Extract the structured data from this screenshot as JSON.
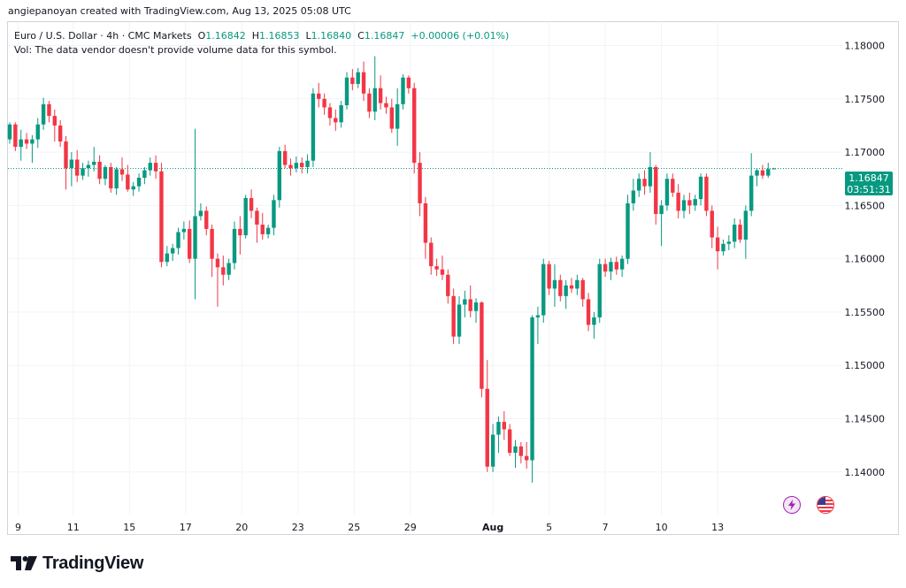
{
  "header": {
    "credit": "angiepanoyan created with TradingView.com, Aug 13, 2025 05:08 UTC"
  },
  "legend": {
    "symbol": "Euro / U.S. Dollar · 4h · CMC Markets",
    "o_label": "O",
    "o_value": "1.16842",
    "h_label": "H",
    "h_value": "1.16853",
    "l_label": "L",
    "l_value": "1.16840",
    "c_label": "C",
    "c_value": "1.16847",
    "change": "+0.00006 (+0.01%)",
    "vol_note": "Vol: The data vendor doesn't provide volume data for this symbol."
  },
  "price_badge": {
    "price": "1.16847",
    "countdown": "03:51:31"
  },
  "brand": {
    "name": "TradingView"
  },
  "icons": {
    "flash": "flash-icon",
    "flag": "us-flag-icon",
    "logo": "tradingview-logo-icon"
  },
  "colors": {
    "up": "#089981",
    "down": "#f23645",
    "grid": "#f0f3fa",
    "text": "#131722",
    "purple": "#9c27b0"
  },
  "chart_data": {
    "type": "candlestick",
    "ylim": [
      1.136,
      1.1822
    ],
    "y_ticks": [
      "1.18000",
      "1.17500",
      "1.17000",
      "1.16500",
      "1.16000",
      "1.15500",
      "1.15000",
      "1.14500",
      "1.14000"
    ],
    "x_ticks": [
      {
        "label": "9",
        "bar": 1.5
      },
      {
        "label": "11",
        "bar": 11.3
      },
      {
        "label": "15",
        "bar": 21.3
      },
      {
        "label": "17",
        "bar": 31.3
      },
      {
        "label": "20",
        "bar": 41.3
      },
      {
        "label": "23",
        "bar": 51.3
      },
      {
        "label": "25",
        "bar": 61.3
      },
      {
        "label": "29",
        "bar": 71.3
      },
      {
        "label": "Aug",
        "bar": 86.0
      },
      {
        "label": "5",
        "bar": 96.0
      },
      {
        "label": "7",
        "bar": 106.0
      },
      {
        "label": "10",
        "bar": 116.0
      },
      {
        "label": "13",
        "bar": 126.0
      }
    ],
    "last_price": 1.16847,
    "candles": [
      [
        1.1712,
        1.1728,
        1.1708,
        1.1726
      ],
      [
        1.1726,
        1.1728,
        1.1701,
        1.1705
      ],
      [
        1.1705,
        1.1721,
        1.1692,
        1.1712
      ],
      [
        1.1712,
        1.1718,
        1.1703,
        1.1708
      ],
      [
        1.1708,
        1.1716,
        1.169,
        1.1712
      ],
      [
        1.1712,
        1.1732,
        1.1704,
        1.1726
      ],
      [
        1.1726,
        1.1751,
        1.1721,
        1.1745
      ],
      [
        1.1745,
        1.1748,
        1.1728,
        1.1734
      ],
      [
        1.1734,
        1.174,
        1.171,
        1.1725
      ],
      [
        1.1725,
        1.173,
        1.1705,
        1.171
      ],
      [
        1.171,
        1.1715,
        1.1665,
        1.1685
      ],
      [
        1.1685,
        1.17,
        1.1668,
        1.1693
      ],
      [
        1.1693,
        1.1702,
        1.1672,
        1.1678
      ],
      [
        1.1678,
        1.169,
        1.1674,
        1.1685
      ],
      [
        1.1685,
        1.1692,
        1.1677,
        1.1688
      ],
      [
        1.1688,
        1.1705,
        1.1682,
        1.1691
      ],
      [
        1.1691,
        1.1697,
        1.167,
        1.1675
      ],
      [
        1.1675,
        1.1688,
        1.1669,
        1.1686
      ],
      [
        1.1686,
        1.169,
        1.1662,
        1.1666
      ],
      [
        1.1666,
        1.1686,
        1.166,
        1.1684
      ],
      [
        1.1684,
        1.1695,
        1.1673,
        1.1679
      ],
      [
        1.1679,
        1.1688,
        1.1663,
        1.1665
      ],
      [
        1.1665,
        1.1672,
        1.1659,
        1.1668
      ],
      [
        1.1668,
        1.168,
        1.1663,
        1.1676
      ],
      [
        1.1676,
        1.1686,
        1.167,
        1.1683
      ],
      [
        1.1683,
        1.1695,
        1.1678,
        1.169
      ],
      [
        1.169,
        1.1697,
        1.1675,
        1.1682
      ],
      [
        1.1682,
        1.169,
        1.1592,
        1.1597
      ],
      [
        1.1597,
        1.1612,
        1.1593,
        1.1605
      ],
      [
        1.1605,
        1.1614,
        1.1598,
        1.161
      ],
      [
        1.161,
        1.1629,
        1.1604,
        1.1625
      ],
      [
        1.1625,
        1.1635,
        1.1618,
        1.1628
      ],
      [
        1.1628,
        1.1636,
        1.1596,
        1.16
      ],
      [
        1.16,
        1.1722,
        1.1562,
        1.164
      ],
      [
        1.164,
        1.1652,
        1.1636,
        1.1645
      ],
      [
        1.1645,
        1.1649,
        1.1622,
        1.1628
      ],
      [
        1.1628,
        1.1632,
        1.1583,
        1.16
      ],
      [
        1.16,
        1.1605,
        1.1555,
        1.1592
      ],
      [
        1.1592,
        1.1603,
        1.1575,
        1.1585
      ],
      [
        1.1585,
        1.16,
        1.158,
        1.1596
      ],
      [
        1.1596,
        1.1635,
        1.159,
        1.1628
      ],
      [
        1.1628,
        1.164,
        1.1604,
        1.1622
      ],
      [
        1.1622,
        1.166,
        1.1619,
        1.1657
      ],
      [
        1.1657,
        1.1665,
        1.1638,
        1.1645
      ],
      [
        1.1645,
        1.1648,
        1.1615,
        1.1632
      ],
      [
        1.1632,
        1.1643,
        1.1618,
        1.1623
      ],
      [
        1.1623,
        1.1632,
        1.1619,
        1.1629
      ],
      [
        1.1629,
        1.166,
        1.1622,
        1.1655
      ],
      [
        1.1655,
        1.1705,
        1.1648,
        1.1701
      ],
      [
        1.1701,
        1.1707,
        1.1685,
        1.1688
      ],
      [
        1.1688,
        1.1694,
        1.1678,
        1.1685
      ],
      [
        1.1685,
        1.1696,
        1.1681,
        1.169
      ],
      [
        1.169,
        1.1695,
        1.168,
        1.1686
      ],
      [
        1.1686,
        1.1698,
        1.168,
        1.1692
      ],
      [
        1.1692,
        1.176,
        1.1686,
        1.1755
      ],
      [
        1.1755,
        1.1765,
        1.1742,
        1.175
      ],
      [
        1.175,
        1.1755,
        1.1735,
        1.1742
      ],
      [
        1.1742,
        1.1746,
        1.1725,
        1.1732
      ],
      [
        1.1732,
        1.174,
        1.172,
        1.1728
      ],
      [
        1.1728,
        1.1748,
        1.1723,
        1.1744
      ],
      [
        1.1744,
        1.1775,
        1.174,
        1.177
      ],
      [
        1.177,
        1.1778,
        1.1758,
        1.1764
      ],
      [
        1.1764,
        1.1779,
        1.176,
        1.1775
      ],
      [
        1.1775,
        1.1785,
        1.1748,
        1.1755
      ],
      [
        1.1755,
        1.176,
        1.1732,
        1.1738
      ],
      [
        1.1738,
        1.179,
        1.173,
        1.176
      ],
      [
        1.176,
        1.1772,
        1.174,
        1.1746
      ],
      [
        1.1746,
        1.1752,
        1.1736,
        1.1742
      ],
      [
        1.1742,
        1.175,
        1.1718,
        1.1722
      ],
      [
        1.1722,
        1.176,
        1.1706,
        1.1745
      ],
      [
        1.1745,
        1.1773,
        1.174,
        1.177
      ],
      [
        1.177,
        1.1772,
        1.1755,
        1.176
      ],
      [
        1.176,
        1.1765,
        1.168,
        1.169
      ],
      [
        1.169,
        1.17,
        1.164,
        1.1652
      ],
      [
        1.1652,
        1.1658,
        1.16,
        1.1615
      ],
      [
        1.1615,
        1.162,
        1.1585,
        1.1593
      ],
      [
        1.1593,
        1.16,
        1.1584,
        1.159
      ],
      [
        1.159,
        1.1603,
        1.158,
        1.1585
      ],
      [
        1.1585,
        1.159,
        1.1558,
        1.1565
      ],
      [
        1.1565,
        1.1572,
        1.152,
        1.1527
      ],
      [
        1.1527,
        1.1565,
        1.152,
        1.1557
      ],
      [
        1.1557,
        1.157,
        1.1545,
        1.1562
      ],
      [
        1.1562,
        1.1575,
        1.1545,
        1.1551
      ],
      [
        1.1551,
        1.1563,
        1.154,
        1.1559
      ],
      [
        1.1559,
        1.156,
        1.147,
        1.1478
      ],
      [
        1.1478,
        1.1505,
        1.14,
        1.1405
      ],
      [
        1.1405,
        1.1445,
        1.14,
        1.1435
      ],
      [
        1.1435,
        1.1452,
        1.1418,
        1.1447
      ],
      [
        1.1447,
        1.1457,
        1.143,
        1.144
      ],
      [
        1.144,
        1.1445,
        1.1415,
        1.1418
      ],
      [
        1.1418,
        1.143,
        1.1404,
        1.1424
      ],
      [
        1.1424,
        1.1428,
        1.1408,
        1.1415
      ],
      [
        1.1415,
        1.1428,
        1.1403,
        1.1411
      ],
      [
        1.1411,
        1.1547,
        1.139,
        1.1545
      ],
      [
        1.1545,
        1.1555,
        1.152,
        1.1547
      ],
      [
        1.1547,
        1.16,
        1.154,
        1.1595
      ],
      [
        1.1595,
        1.1598,
        1.1566,
        1.1572
      ],
      [
        1.1572,
        1.1595,
        1.1555,
        1.158
      ],
      [
        1.158,
        1.1585,
        1.156,
        1.1565
      ],
      [
        1.1565,
        1.158,
        1.1553,
        1.1575
      ],
      [
        1.1575,
        1.1582,
        1.1568,
        1.1572
      ],
      [
        1.1572,
        1.1585,
        1.1566,
        1.158
      ],
      [
        1.158,
        1.1582,
        1.1555,
        1.1562
      ],
      [
        1.1562,
        1.1568,
        1.1532,
        1.1538
      ],
      [
        1.1538,
        1.155,
        1.1525,
        1.1545
      ],
      [
        1.1545,
        1.16,
        1.154,
        1.1595
      ],
      [
        1.1595,
        1.16,
        1.1583,
        1.1588
      ],
      [
        1.1588,
        1.1601,
        1.158,
        1.1597
      ],
      [
        1.1597,
        1.1602,
        1.1585,
        1.159
      ],
      [
        1.159,
        1.1603,
        1.1583,
        1.16
      ],
      [
        1.16,
        1.166,
        1.1595,
        1.1652
      ],
      [
        1.1652,
        1.1675,
        1.1645,
        1.1664
      ],
      [
        1.1664,
        1.168,
        1.1658,
        1.1675
      ],
      [
        1.1675,
        1.1683,
        1.166,
        1.1668
      ],
      [
        1.1668,
        1.17,
        1.1662,
        1.1686
      ],
      [
        1.1686,
        1.1688,
        1.1632,
        1.1642
      ],
      [
        1.1642,
        1.1655,
        1.1612,
        1.165
      ],
      [
        1.165,
        1.168,
        1.1645,
        1.1675
      ],
      [
        1.1675,
        1.168,
        1.1658,
        1.1662
      ],
      [
        1.1662,
        1.167,
        1.1638,
        1.1645
      ],
      [
        1.1645,
        1.166,
        1.1638,
        1.1655
      ],
      [
        1.1655,
        1.1662,
        1.1642,
        1.165
      ],
      [
        1.165,
        1.166,
        1.1645,
        1.1656
      ],
      [
        1.1656,
        1.168,
        1.165,
        1.1677
      ],
      [
        1.1677,
        1.168,
        1.164,
        1.1645
      ],
      [
        1.1645,
        1.165,
        1.161,
        1.162
      ],
      [
        1.162,
        1.163,
        1.159,
        1.1607
      ],
      [
        1.1607,
        1.1618,
        1.1603,
        1.1614
      ],
      [
        1.1614,
        1.1622,
        1.1608,
        1.1616
      ],
      [
        1.1616,
        1.1638,
        1.161,
        1.1632
      ],
      [
        1.1632,
        1.1637,
        1.1615,
        1.1618
      ],
      [
        1.1618,
        1.165,
        1.16,
        1.1645
      ],
      [
        1.1645,
        1.1699,
        1.164,
        1.1678
      ],
      [
        1.1678,
        1.1685,
        1.1668,
        1.1683
      ],
      [
        1.1683,
        1.1688,
        1.1675,
        1.1678
      ],
      [
        1.1678,
        1.169,
        1.1676,
        1.16842
      ],
      [
        1.16842,
        1.16853,
        1.1684,
        1.16847
      ]
    ]
  }
}
